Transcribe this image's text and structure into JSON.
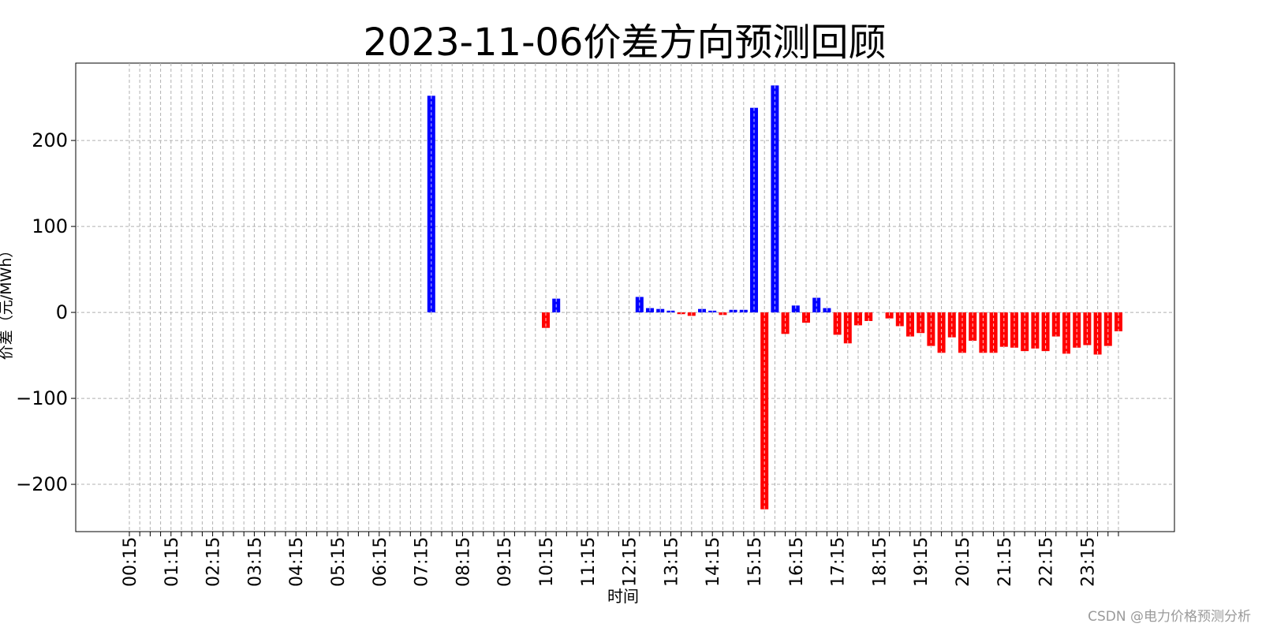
{
  "chart_data": {
    "type": "bar",
    "title": "2023-11-06价差方向预测回顾",
    "xlabel": "时间",
    "ylabel": "价差（元/MWh）",
    "ylim": [
      -255,
      290
    ],
    "yticks": [
      200,
      100,
      0,
      -100,
      -200
    ],
    "ytick_labels": [
      "200",
      "100",
      "0",
      "−100",
      "−200"
    ],
    "grid": true,
    "colors": {
      "positive": "#0000ff",
      "negative": "#ff0000"
    },
    "categories": [
      "00:15",
      "00:30",
      "00:45",
      "01:00",
      "01:15",
      "01:30",
      "01:45",
      "02:00",
      "02:15",
      "02:30",
      "02:45",
      "03:00",
      "03:15",
      "03:30",
      "03:45",
      "04:00",
      "04:15",
      "04:30",
      "04:45",
      "05:00",
      "05:15",
      "05:30",
      "05:45",
      "06:00",
      "06:15",
      "06:30",
      "06:45",
      "07:00",
      "07:15",
      "07:30",
      "07:45",
      "08:00",
      "08:15",
      "08:30",
      "08:45",
      "09:00",
      "09:15",
      "09:30",
      "09:45",
      "10:00",
      "10:15",
      "10:30",
      "10:45",
      "11:00",
      "11:15",
      "11:30",
      "11:45",
      "12:00",
      "12:15",
      "12:30",
      "12:45",
      "13:00",
      "13:15",
      "13:30",
      "13:45",
      "14:00",
      "14:15",
      "14:30",
      "14:45",
      "15:00",
      "15:15",
      "15:30",
      "15:45",
      "16:00",
      "16:15",
      "16:30",
      "16:45",
      "17:00",
      "17:15",
      "17:30",
      "17:45",
      "18:00",
      "18:15",
      "18:30",
      "18:45",
      "19:00",
      "19:15",
      "19:30",
      "19:45",
      "20:00",
      "20:15",
      "20:30",
      "20:45",
      "21:00",
      "21:15",
      "21:30",
      "21:45",
      "22:00",
      "22:15",
      "22:30",
      "22:45",
      "23:00",
      "23:15",
      "23:30",
      "23:45",
      "00:00"
    ],
    "xtick_labels": [
      "00:15",
      "01:15",
      "02:15",
      "03:15",
      "04:15",
      "05:15",
      "06:15",
      "07:15",
      "08:15",
      "09:15",
      "10:15",
      "11:15",
      "12:15",
      "13:15",
      "14:15",
      "15:15",
      "16:15",
      "17:15",
      "18:15",
      "19:15",
      "20:15",
      "21:15",
      "22:15",
      "23:15"
    ],
    "values": [
      0,
      0,
      0,
      0,
      0,
      0,
      0,
      0,
      0,
      0,
      0,
      0,
      0,
      0,
      0,
      0,
      0,
      0,
      0,
      0,
      0,
      0,
      0,
      0,
      0,
      0,
      0,
      0,
      0,
      252,
      0,
      0,
      0,
      0,
      0,
      0,
      0,
      0,
      0,
      0,
      -18,
      16,
      0,
      0,
      0,
      0,
      0,
      0,
      0,
      18,
      5,
      4,
      2,
      -2,
      -4,
      4,
      2,
      -3,
      3,
      3,
      238,
      -229,
      264,
      -25,
      8,
      -12,
      17,
      5,
      -26,
      -36,
      -15,
      -10,
      0,
      -7,
      -16,
      -28,
      -24,
      -39,
      -47,
      -29,
      -47,
      -33,
      -47,
      -47,
      -40,
      -41,
      -45,
      -42,
      -45,
      -28,
      -48,
      -41,
      -38,
      -49,
      -39,
      -22
    ]
  },
  "watermark": "CSDN @电力价格预测分析"
}
